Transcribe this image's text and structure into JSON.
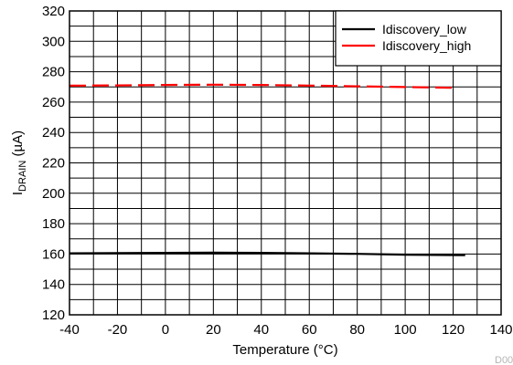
{
  "chart_data": {
    "type": "line",
    "xlabel": "Temperature (°C)",
    "ylabel_main": "I",
    "ylabel_sub": "DRAIN",
    "ylabel_unit": " (µA)",
    "xlim": [
      -40,
      140
    ],
    "ylim": [
      120,
      320
    ],
    "x_ticks": [
      "-40",
      "-20",
      "0",
      "20",
      "40",
      "60",
      "80",
      "100",
      "120",
      "140"
    ],
    "y_ticks": [
      "120",
      "140",
      "160",
      "180",
      "200",
      "220",
      "240",
      "260",
      "280",
      "300",
      "320"
    ],
    "grid": true,
    "grid_minor_x": 10,
    "grid_minor_y": 10,
    "legend_position": "top-right",
    "series": [
      {
        "name": "Idiscovery_low",
        "color": "#000000",
        "style": "solid",
        "x": [
          -40,
          -20,
          0,
          20,
          40,
          60,
          80,
          100,
          125
        ],
        "y": [
          160.5,
          160.6,
          160.8,
          160.9,
          160.8,
          160.5,
          160.1,
          159.6,
          159.3
        ]
      },
      {
        "name": "Idiscovery_high",
        "color": "#ff0000",
        "style": "dashed",
        "x": [
          -40,
          -20,
          0,
          20,
          40,
          60,
          80,
          100,
          120
        ],
        "y": [
          270.8,
          271.0,
          271.3,
          271.5,
          271.3,
          270.9,
          270.4,
          269.9,
          269.4
        ]
      }
    ]
  },
  "figure_code": "D00"
}
